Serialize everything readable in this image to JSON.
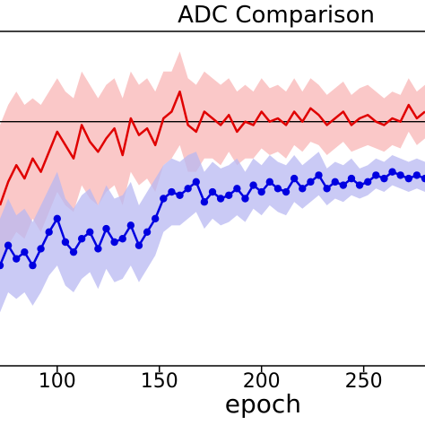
{
  "chart_data": {
    "type": "line",
    "title": "ADC Comparison",
    "xlabel": "epoch",
    "ylabel": "",
    "x_tick_labels": [
      "100",
      "150",
      "200",
      "250"
    ],
    "xlim": [
      72,
      280
    ],
    "ylim": [
      0,
      1
    ],
    "grid": false,
    "legend": "none",
    "reference_line": {
      "y": 0.73,
      "color": "#000000"
    },
    "series": [
      {
        "color": "#e00000",
        "band_color": "#f8b6b6",
        "marker": "none",
        "x": [
          72,
          76,
          80,
          84,
          88,
          92,
          96,
          100,
          104,
          108,
          112,
          116,
          120,
          124,
          128,
          132,
          136,
          140,
          144,
          148,
          152,
          156,
          160,
          164,
          168,
          172,
          176,
          180,
          184,
          188,
          192,
          196,
          200,
          204,
          208,
          212,
          216,
          220,
          224,
          228,
          232,
          236,
          240,
          244,
          248,
          252,
          256,
          260,
          264,
          268,
          272,
          276,
          280
        ],
        "values": [
          0.48,
          0.55,
          0.6,
          0.56,
          0.62,
          0.58,
          0.64,
          0.7,
          0.66,
          0.62,
          0.72,
          0.67,
          0.64,
          0.68,
          0.71,
          0.63,
          0.74,
          0.69,
          0.71,
          0.66,
          0.74,
          0.76,
          0.82,
          0.72,
          0.7,
          0.76,
          0.74,
          0.72,
          0.75,
          0.7,
          0.73,
          0.72,
          0.76,
          0.73,
          0.74,
          0.72,
          0.76,
          0.73,
          0.77,
          0.75,
          0.72,
          0.74,
          0.76,
          0.72,
          0.74,
          0.75,
          0.73,
          0.72,
          0.74,
          0.73,
          0.78,
          0.74,
          0.76
        ],
        "lower": [
          0.3,
          0.36,
          0.4,
          0.38,
          0.44,
          0.4,
          0.46,
          0.52,
          0.48,
          0.46,
          0.54,
          0.5,
          0.48,
          0.52,
          0.54,
          0.48,
          0.58,
          0.54,
          0.56,
          0.52,
          0.6,
          0.62,
          0.66,
          0.58,
          0.58,
          0.62,
          0.62,
          0.6,
          0.64,
          0.6,
          0.62,
          0.62,
          0.65,
          0.63,
          0.64,
          0.62,
          0.66,
          0.64,
          0.67,
          0.66,
          0.63,
          0.65,
          0.67,
          0.64,
          0.65,
          0.66,
          0.65,
          0.64,
          0.66,
          0.65,
          0.7,
          0.66,
          0.68
        ],
        "upper": [
          0.72,
          0.78,
          0.82,
          0.78,
          0.8,
          0.78,
          0.82,
          0.86,
          0.82,
          0.8,
          0.88,
          0.84,
          0.8,
          0.84,
          0.86,
          0.8,
          0.88,
          0.84,
          0.86,
          0.82,
          0.88,
          0.88,
          0.94,
          0.86,
          0.84,
          0.88,
          0.86,
          0.84,
          0.86,
          0.82,
          0.84,
          0.82,
          0.86,
          0.83,
          0.84,
          0.82,
          0.86,
          0.82,
          0.86,
          0.84,
          0.81,
          0.83,
          0.85,
          0.81,
          0.83,
          0.84,
          0.82,
          0.8,
          0.82,
          0.81,
          0.86,
          0.82,
          0.84
        ]
      },
      {
        "color": "#0000e0",
        "band_color": "#b8b8f2",
        "marker": "circle",
        "x": [
          72,
          76,
          80,
          84,
          88,
          92,
          96,
          100,
          104,
          108,
          112,
          116,
          120,
          124,
          128,
          132,
          136,
          140,
          144,
          148,
          152,
          156,
          160,
          164,
          168,
          172,
          176,
          180,
          184,
          188,
          192,
          196,
          200,
          204,
          208,
          212,
          216,
          220,
          224,
          228,
          232,
          236,
          240,
          244,
          248,
          252,
          256,
          260,
          264,
          268,
          272,
          276,
          280
        ],
        "values": [
          0.3,
          0.36,
          0.32,
          0.34,
          0.3,
          0.35,
          0.4,
          0.44,
          0.37,
          0.34,
          0.38,
          0.4,
          0.35,
          0.41,
          0.37,
          0.38,
          0.42,
          0.36,
          0.4,
          0.44,
          0.5,
          0.52,
          0.51,
          0.53,
          0.55,
          0.49,
          0.52,
          0.5,
          0.51,
          0.53,
          0.5,
          0.54,
          0.52,
          0.55,
          0.53,
          0.52,
          0.56,
          0.53,
          0.55,
          0.57,
          0.53,
          0.55,
          0.54,
          0.56,
          0.54,
          0.55,
          0.57,
          0.56,
          0.58,
          0.57,
          0.56,
          0.57,
          0.56
        ],
        "lower": [
          0.16,
          0.22,
          0.2,
          0.22,
          0.18,
          0.22,
          0.27,
          0.3,
          0.24,
          0.22,
          0.26,
          0.28,
          0.23,
          0.29,
          0.25,
          0.26,
          0.3,
          0.25,
          0.29,
          0.33,
          0.4,
          0.42,
          0.42,
          0.44,
          0.46,
          0.41,
          0.44,
          0.42,
          0.43,
          0.45,
          0.43,
          0.47,
          0.45,
          0.48,
          0.46,
          0.45,
          0.49,
          0.47,
          0.49,
          0.51,
          0.48,
          0.5,
          0.49,
          0.51,
          0.5,
          0.51,
          0.53,
          0.52,
          0.54,
          0.53,
          0.52,
          0.53,
          0.52
        ],
        "upper": [
          0.44,
          0.5,
          0.45,
          0.47,
          0.43,
          0.48,
          0.53,
          0.58,
          0.5,
          0.47,
          0.51,
          0.53,
          0.48,
          0.54,
          0.5,
          0.51,
          0.55,
          0.48,
          0.52,
          0.56,
          0.6,
          0.62,
          0.61,
          0.63,
          0.64,
          0.58,
          0.61,
          0.59,
          0.6,
          0.62,
          0.58,
          0.62,
          0.6,
          0.63,
          0.61,
          0.6,
          0.63,
          0.6,
          0.62,
          0.64,
          0.59,
          0.61,
          0.6,
          0.62,
          0.59,
          0.6,
          0.62,
          0.61,
          0.63,
          0.62,
          0.61,
          0.62,
          0.61
        ]
      }
    ]
  }
}
